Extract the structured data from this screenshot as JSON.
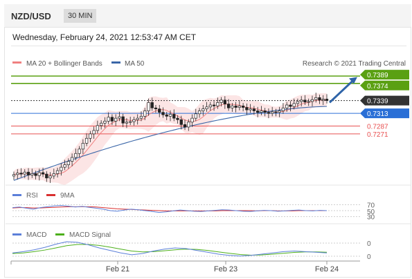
{
  "header": {
    "pair": "NZD/USD",
    "timeframe": "30 MIN"
  },
  "datetime": "Wednesday, February 24, 2021 12:53:47 AM CET",
  "legend": {
    "ma20": "MA 20 + Bollinger Bands",
    "ma50": "MA 50",
    "credit": "Research © 2021 Trading Central"
  },
  "colors": {
    "resistance": "#5aa012",
    "support": "#e85050",
    "pivot": "#2a6fd6",
    "current": "#333333",
    "ma20": "#f08080",
    "ma50": "#3a66a8",
    "arrow": "#2f64a8",
    "rsi": "#5b7fd9",
    "rsi_ma": "#d93030",
    "macd": "#5b7fd9",
    "macd_signal": "#4caf1a"
  },
  "chart_data": [
    {
      "type": "candlestick",
      "title": "NZD/USD 30 MIN",
      "x_ticks": [
        "Feb 21",
        "Feb 23",
        "Feb 24"
      ],
      "ylim": [
        0.7175,
        0.7392
      ],
      "levels": [
        {
          "value": 0.7389,
          "label": "0.7389",
          "kind": "resistance"
        },
        {
          "value": 0.7374,
          "label": "0.7374",
          "kind": "resistance"
        },
        {
          "value": 0.7339,
          "label": "0.7339",
          "kind": "current"
        },
        {
          "value": 0.7313,
          "label": "0.7313",
          "kind": "pivot"
        },
        {
          "value": 0.7287,
          "label": "0.7287",
          "kind": "support"
        },
        {
          "value": 0.7271,
          "label": "0.7271",
          "kind": "support"
        }
      ],
      "series": [
        {
          "name": "MA 20 + Bollinger Bands",
          "kind": "ma20"
        },
        {
          "name": "MA 50",
          "kind": "ma50"
        }
      ],
      "closes": [
        0.7188,
        0.7191,
        0.7189,
        0.7193,
        0.7187,
        0.719,
        0.7186,
        0.7192,
        0.7189,
        0.7181,
        0.7185,
        0.719,
        0.7196,
        0.7203,
        0.7208,
        0.7215,
        0.7223,
        0.7231,
        0.724,
        0.7252,
        0.7262,
        0.7271,
        0.7278,
        0.7288,
        0.7293,
        0.7297,
        0.7305,
        0.7297,
        0.7303,
        0.7306,
        0.7293,
        0.7295,
        0.7296,
        0.73,
        0.7303,
        0.7307,
        0.7318,
        0.7335,
        0.7324,
        0.7322,
        0.7315,
        0.731,
        0.7307,
        0.7311,
        0.7303,
        0.73,
        0.729,
        0.7285,
        0.7295,
        0.7303,
        0.7312,
        0.7318,
        0.7322,
        0.7326,
        0.733,
        0.7328,
        0.7335,
        0.734,
        0.7332,
        0.7324,
        0.7328,
        0.7325,
        0.7328,
        0.7325,
        0.732,
        0.7322,
        0.7318,
        0.7315,
        0.7318,
        0.7315,
        0.7313,
        0.7316,
        0.7315,
        0.7318,
        0.7324,
        0.733,
        0.7327,
        0.7333,
        0.7337,
        0.734,
        0.7336,
        0.7337,
        0.7341,
        0.7345,
        0.734,
        0.7342,
        0.7339
      ],
      "ma50_start": 0.7176,
      "ma50_end": 0.7327,
      "annotation": "arrow pointing to 0.7389"
    },
    {
      "type": "line",
      "title": "RSI",
      "series": [
        {
          "name": "RSI",
          "kind": "rsi"
        },
        {
          "name": "9MA",
          "kind": "rsi_ma"
        }
      ],
      "y_ticks": [
        "70",
        "50",
        "30"
      ],
      "ylim": [
        20,
        80
      ],
      "rsi_values": [
        60,
        62,
        58,
        55,
        60,
        63,
        66,
        67,
        65,
        62,
        64,
        61,
        58,
        55,
        50,
        48,
        52,
        55,
        53,
        50,
        47,
        44,
        46,
        49,
        52,
        50,
        48,
        47,
        49,
        51,
        53,
        52,
        50,
        48,
        47,
        49,
        51,
        50,
        48,
        49,
        51,
        52,
        50,
        49,
        51,
        50
      ],
      "ma_values": [
        59,
        60,
        60,
        59,
        59,
        60,
        61,
        62,
        63,
        63,
        63,
        63,
        62,
        60,
        58,
        56,
        55,
        54,
        53,
        52,
        51,
        50,
        49,
        49,
        49,
        49,
        49,
        49,
        49,
        49,
        50,
        50,
        50,
        50,
        50,
        49,
        50,
        50,
        49,
        49,
        49,
        50,
        50,
        50,
        50,
        50
      ]
    },
    {
      "type": "line",
      "title": "MACD",
      "series": [
        {
          "name": "MACD",
          "kind": "macd"
        },
        {
          "name": "MACD Signal",
          "kind": "macd_signal"
        }
      ],
      "y_ticks": [
        "0",
        "0"
      ],
      "macd_values": [
        0.1,
        0.2,
        0.35,
        0.55,
        0.8,
        1.0,
        0.95,
        0.75,
        0.5,
        0.3,
        0.1,
        -0.05,
        0.05,
        0.25,
        0.4,
        0.5,
        0.45,
        0.3,
        0.15,
        0.0,
        -0.1,
        -0.15,
        -0.1,
        0.0,
        0.1,
        0.2,
        0.25,
        0.2,
        0.15,
        0.1
      ],
      "signal_values": [
        0.05,
        0.1,
        0.2,
        0.33,
        0.5,
        0.68,
        0.78,
        0.78,
        0.7,
        0.56,
        0.4,
        0.25,
        0.18,
        0.2,
        0.27,
        0.35,
        0.4,
        0.38,
        0.3,
        0.18,
        0.07,
        -0.03,
        -0.08,
        -0.06,
        0.0,
        0.07,
        0.14,
        0.18,
        0.18,
        0.15
      ]
    }
  ]
}
